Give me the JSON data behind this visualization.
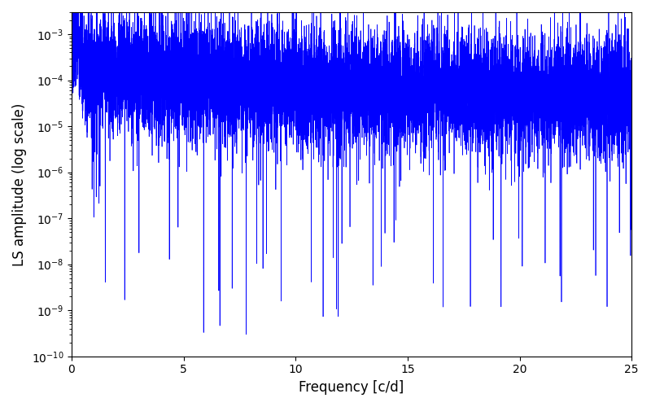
{
  "xlabel": "Frequency [c/d]",
  "ylabel": "LS amplitude (log scale)",
  "line_color": "#0000FF",
  "xlim": [
    0,
    25
  ],
  "ylim": [
    1e-10,
    0.003
  ],
  "background_color": "#ffffff",
  "figsize": [
    8.0,
    5.0
  ],
  "dpi": 100,
  "n_points": 10000,
  "seed": 7,
  "peak_amplitude": 0.004,
  "base_amplitude_low": 3e-05,
  "base_amplitude_high": 0.0002,
  "noise_log_std": 1.5,
  "ylabel_fontsize": 12,
  "xlabel_fontsize": 12
}
